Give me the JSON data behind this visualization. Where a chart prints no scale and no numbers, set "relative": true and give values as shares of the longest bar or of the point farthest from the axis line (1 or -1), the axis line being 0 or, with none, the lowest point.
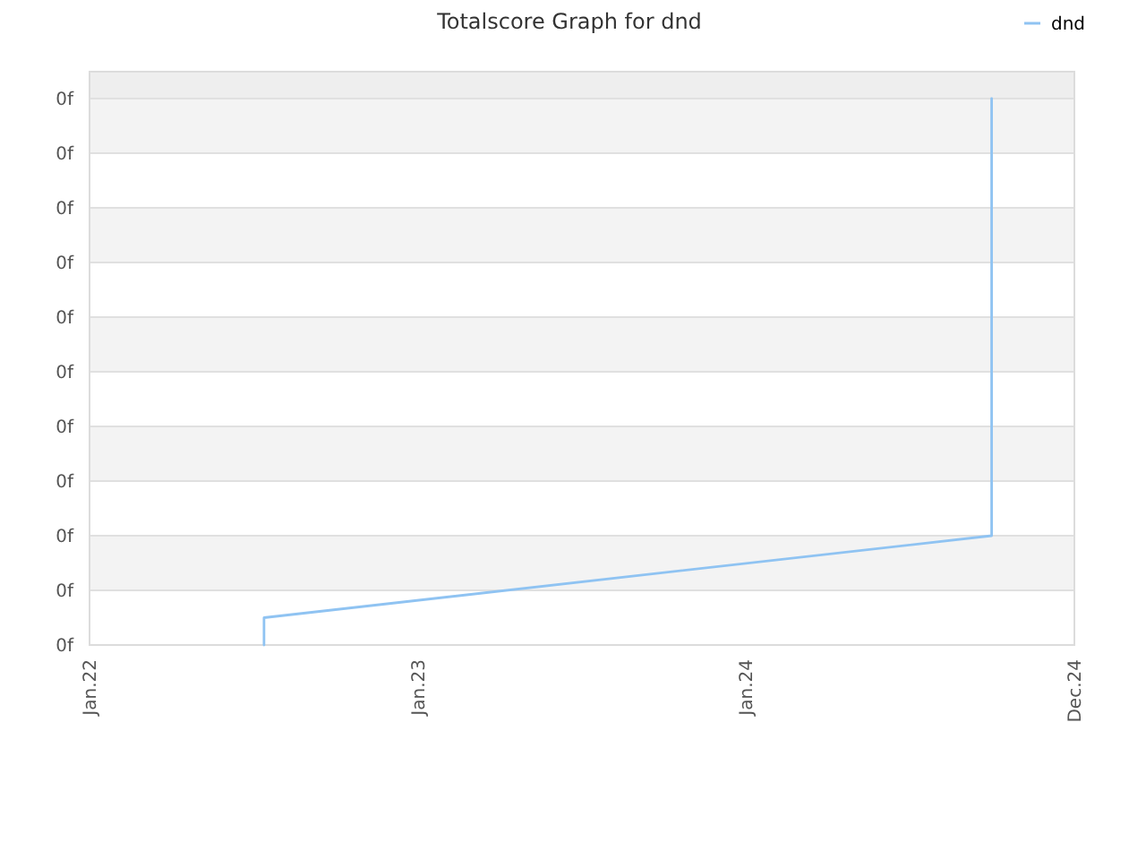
{
  "chart_data": {
    "type": "line",
    "title": "Totalscore Graph for dnd",
    "x": [
      "2022-07-14",
      "2022-07-14",
      "2024-09-30",
      "2024-09-30"
    ],
    "series": [
      {
        "name": "dnd",
        "color": "#8fc3f2",
        "values": [
          0,
          0.05,
          0.2,
          1
        ]
      }
    ],
    "relative": true,
    "xlim": [
      "2022-01-01",
      "2024-12-31"
    ],
    "xticks": [
      {
        "value": "2022-01-01",
        "label": "Jan.22"
      },
      {
        "value": "2023-01-01",
        "label": "Jan.23"
      },
      {
        "value": "2024-01-01",
        "label": "Jan.24"
      },
      {
        "value": "2024-12-31",
        "label": "Dec.24"
      }
    ],
    "annotations": [
      "0f",
      "0f",
      "0f",
      "0f",
      "0f",
      "0f",
      "0f",
      "0f",
      "0f",
      "0f",
      "0f"
    ],
    "grid": "y",
    "legend": "top right"
  }
}
